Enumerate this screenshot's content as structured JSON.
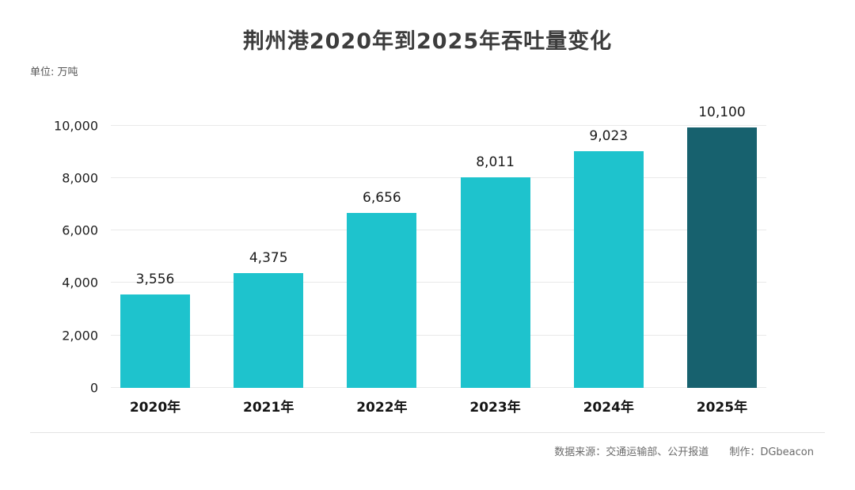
{
  "chart_data": {
    "type": "bar",
    "title": "荆州港2020年到2025年吞吐量变化",
    "unit_label": "单位: 万吨",
    "categories": [
      "2020年",
      "2021年",
      "2022年",
      "2023年",
      "2024年",
      "2025年"
    ],
    "values": [
      3556,
      4375,
      6656,
      8011,
      9023,
      10100
    ],
    "value_labels": [
      "3,556",
      "4,375",
      "6,656",
      "8,011",
      "9,023",
      "10,100"
    ],
    "xlabel": "",
    "ylabel": "",
    "ylim": [
      0,
      10000
    ],
    "yticks": [
      0,
      2000,
      4000,
      6000,
      8000,
      10000
    ],
    "ytick_labels": [
      "0",
      "2,000",
      "4,000",
      "6,000",
      "8,000",
      "10,000"
    ],
    "grid": true,
    "legend": false,
    "bar_color": "#1ec3cd",
    "highlight_bar_color": "#17616e",
    "highlight_index": 5
  },
  "footer": {
    "source": "数据来源：交通运输部、公开报道",
    "maker": "制作：DGbeacon"
  }
}
